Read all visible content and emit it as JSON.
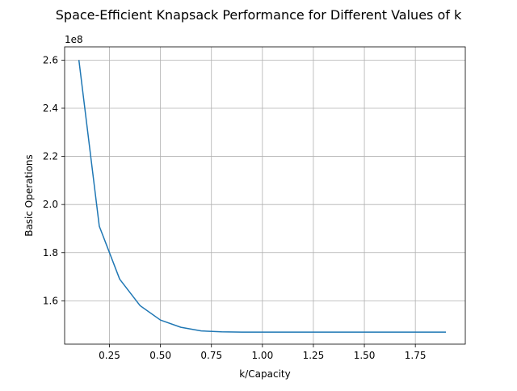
{
  "chart_data": {
    "type": "line",
    "title": "Space-Efficient Knapsack Performance for Different Values of k",
    "xlabel": "k/Capacity",
    "ylabel": "Basic Operations",
    "y_offset_label": "1e8",
    "xlim": [
      0.03,
      1.995
    ],
    "ylim": [
      1.42,
      2.655
    ],
    "grid": true,
    "x_ticks": [
      0.25,
      0.5,
      0.75,
      1.0,
      1.25,
      1.5,
      1.75
    ],
    "x_tick_labels": [
      "0.25",
      "0.50",
      "0.75",
      "1.00",
      "1.25",
      "1.50",
      "1.75"
    ],
    "y_ticks": [
      1.6,
      1.8,
      2.0,
      2.2,
      2.4,
      2.6
    ],
    "y_tick_labels": [
      "1.6",
      "1.8",
      "2.0",
      "2.2",
      "2.4",
      "2.6"
    ],
    "series": [
      {
        "color": "#1f77b4",
        "x": [
          0.1,
          0.2,
          0.3,
          0.4,
          0.5,
          0.6,
          0.7,
          0.8,
          0.9,
          1.0,
          1.1,
          1.2,
          1.3,
          1.4,
          1.5,
          1.6,
          1.7,
          1.8,
          1.9
        ],
        "y": [
          2.6,
          1.91,
          1.69,
          1.58,
          1.52,
          1.49,
          1.475,
          1.471,
          1.47,
          1.47,
          1.47,
          1.47,
          1.47,
          1.47,
          1.47,
          1.47,
          1.47,
          1.47,
          1.47
        ]
      }
    ]
  }
}
